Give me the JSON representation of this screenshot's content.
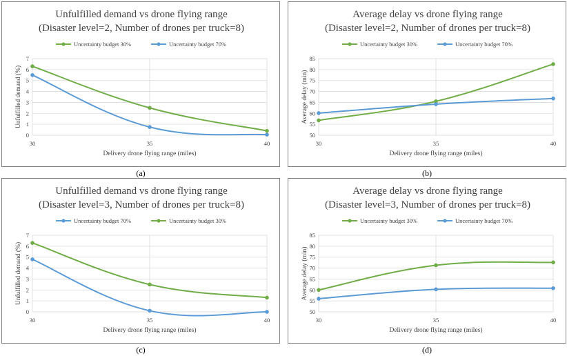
{
  "charts": [
    {
      "type": "line",
      "caption": "(a)",
      "title": "Unfulfilled demand vs drone flying range",
      "subtitle": "(Disaster level=2, Number of drones per truck=8)",
      "xlabel": "Delivery drone flying range (miles)",
      "ylabel": "Unfulfilled demand (%)",
      "categories": [
        "30",
        "35",
        "40"
      ],
      "ylim": [
        0,
        7
      ],
      "yticks": [
        "0",
        "1",
        "2",
        "3",
        "4",
        "5",
        "6",
        "7"
      ],
      "series": [
        {
          "name": "Uncertainty budget 30%",
          "color": "#70ad47",
          "values": [
            6.3,
            2.5,
            0.4
          ]
        },
        {
          "name": "Uncertainty budget 70%",
          "color": "#5b9bd5",
          "values": [
            5.5,
            0.75,
            0.05
          ]
        }
      ]
    },
    {
      "type": "line",
      "caption": "(b)",
      "title": "Average delay vs drone flying range",
      "subtitle": "(Disaster level=2, Number of drones per truck=8)",
      "xlabel": "Delivery drone flying range (miles)",
      "ylabel": "Average delay (min)",
      "categories": [
        "30",
        "35",
        "40"
      ],
      "ylim": [
        50,
        85
      ],
      "yticks": [
        "50",
        "55",
        "60",
        "65",
        "70",
        "75",
        "80",
        "85"
      ],
      "series": [
        {
          "name": "Uncertainty budget 30%",
          "color": "#70ad47",
          "values": [
            56.8,
            65.5,
            82.5
          ]
        },
        {
          "name": "Uncertainty budget 70%",
          "color": "#5b9bd5",
          "values": [
            60.1,
            64.2,
            66.8
          ]
        }
      ]
    },
    {
      "type": "line",
      "caption": "(c)",
      "title": "Unfulfilled demand vs drone flying range",
      "subtitle": "(Disaster level=3, Number of drones per truck=8)",
      "xlabel": "Delivery drone flying range (miles)",
      "ylabel": "Unfulfilled demand (%)",
      "categories": [
        "30",
        "35",
        "40"
      ],
      "ylim": [
        0,
        7
      ],
      "yticks": [
        "0",
        "1",
        "2",
        "3",
        "4",
        "5",
        "6",
        "7"
      ],
      "series": [
        {
          "name": "Uncertainty budget 70%",
          "color": "#5b9bd5",
          "values": [
            4.8,
            0.1,
            0.0
          ]
        },
        {
          "name": "Uncertainty budget 30%",
          "color": "#70ad47",
          "values": [
            6.3,
            2.5,
            1.3
          ]
        }
      ]
    },
    {
      "type": "line",
      "caption": "(d)",
      "title": "Average delay vs drone flying range",
      "subtitle": "(Disaster level=3, Number of drones per truck=8)",
      "xlabel": "Delivery drone flying range (miles)",
      "ylabel": "Average delay (min)",
      "categories": [
        "30",
        "35",
        "40"
      ],
      "ylim": [
        50,
        85
      ],
      "yticks": [
        "50",
        "55",
        "60",
        "65",
        "70",
        "75",
        "80",
        "85"
      ],
      "series": [
        {
          "name": "Uncertainty budget 30%",
          "color": "#70ad47",
          "values": [
            60.0,
            71.3,
            72.6
          ]
        },
        {
          "name": "Uncertainty budget 70%",
          "color": "#5b9bd5",
          "values": [
            56.0,
            60.3,
            60.8
          ]
        }
      ]
    }
  ]
}
